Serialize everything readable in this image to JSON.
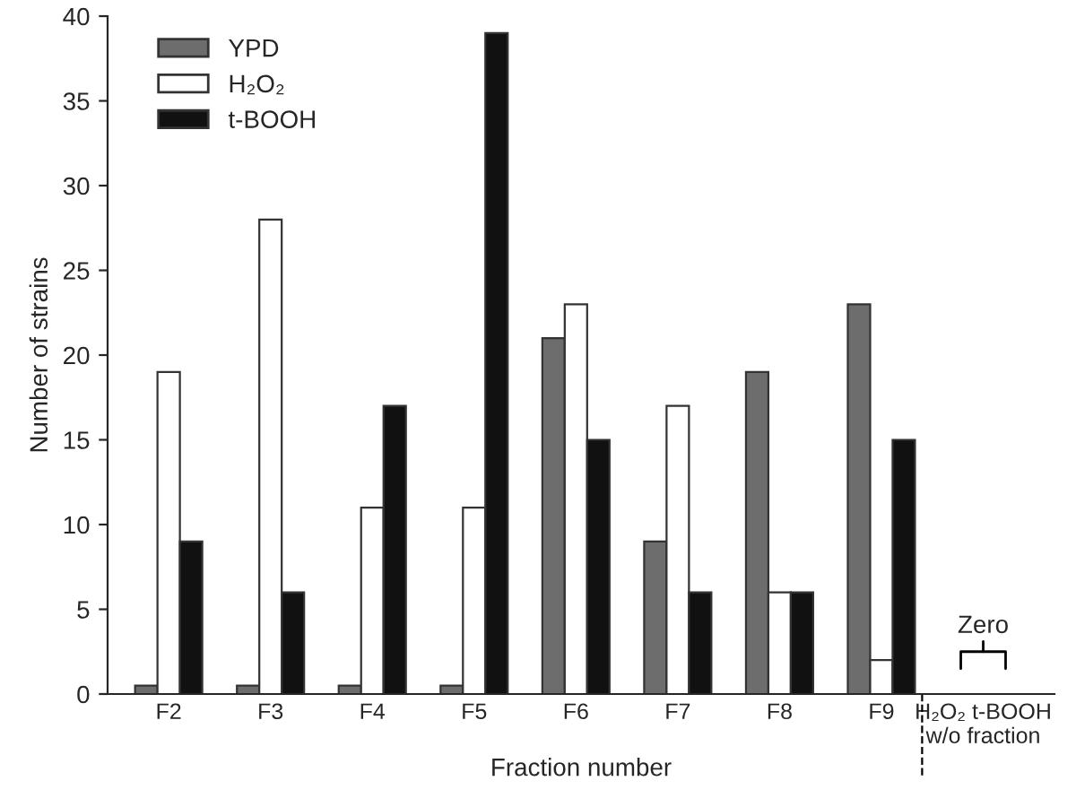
{
  "chart_data": {
    "type": "bar",
    "xlabel": "Fraction number",
    "ylabel": "Number of strains",
    "categories": [
      "F2",
      "F3",
      "F4",
      "F5",
      "F6",
      "F7",
      "F8",
      "F9",
      "H₂O₂ t-BOOH\nw/o fraction"
    ],
    "series": [
      {
        "name": "YPD",
        "color": "#6d6d6d",
        "values": [
          0.5,
          0.5,
          0.5,
          0.5,
          21,
          9,
          19,
          23,
          null
        ]
      },
      {
        "name": "H₂O₂",
        "color": "#ffffff",
        "values": [
          19,
          28,
          11,
          11,
          23,
          17,
          6,
          2,
          0
        ]
      },
      {
        "name": "t-BOOH",
        "color": "#111111",
        "values": [
          9,
          6,
          17,
          39,
          15,
          6,
          6,
          15,
          0
        ]
      }
    ],
    "ylim": [
      0,
      40
    ],
    "yticks": [
      0,
      5,
      10,
      15,
      20,
      25,
      30,
      35,
      40
    ],
    "grid": false,
    "legend": "top left",
    "annotations": [
      {
        "text": "Zero",
        "x": "H₂O₂ t-BOOH\nw/o fraction",
        "y": 0
      }
    ]
  }
}
